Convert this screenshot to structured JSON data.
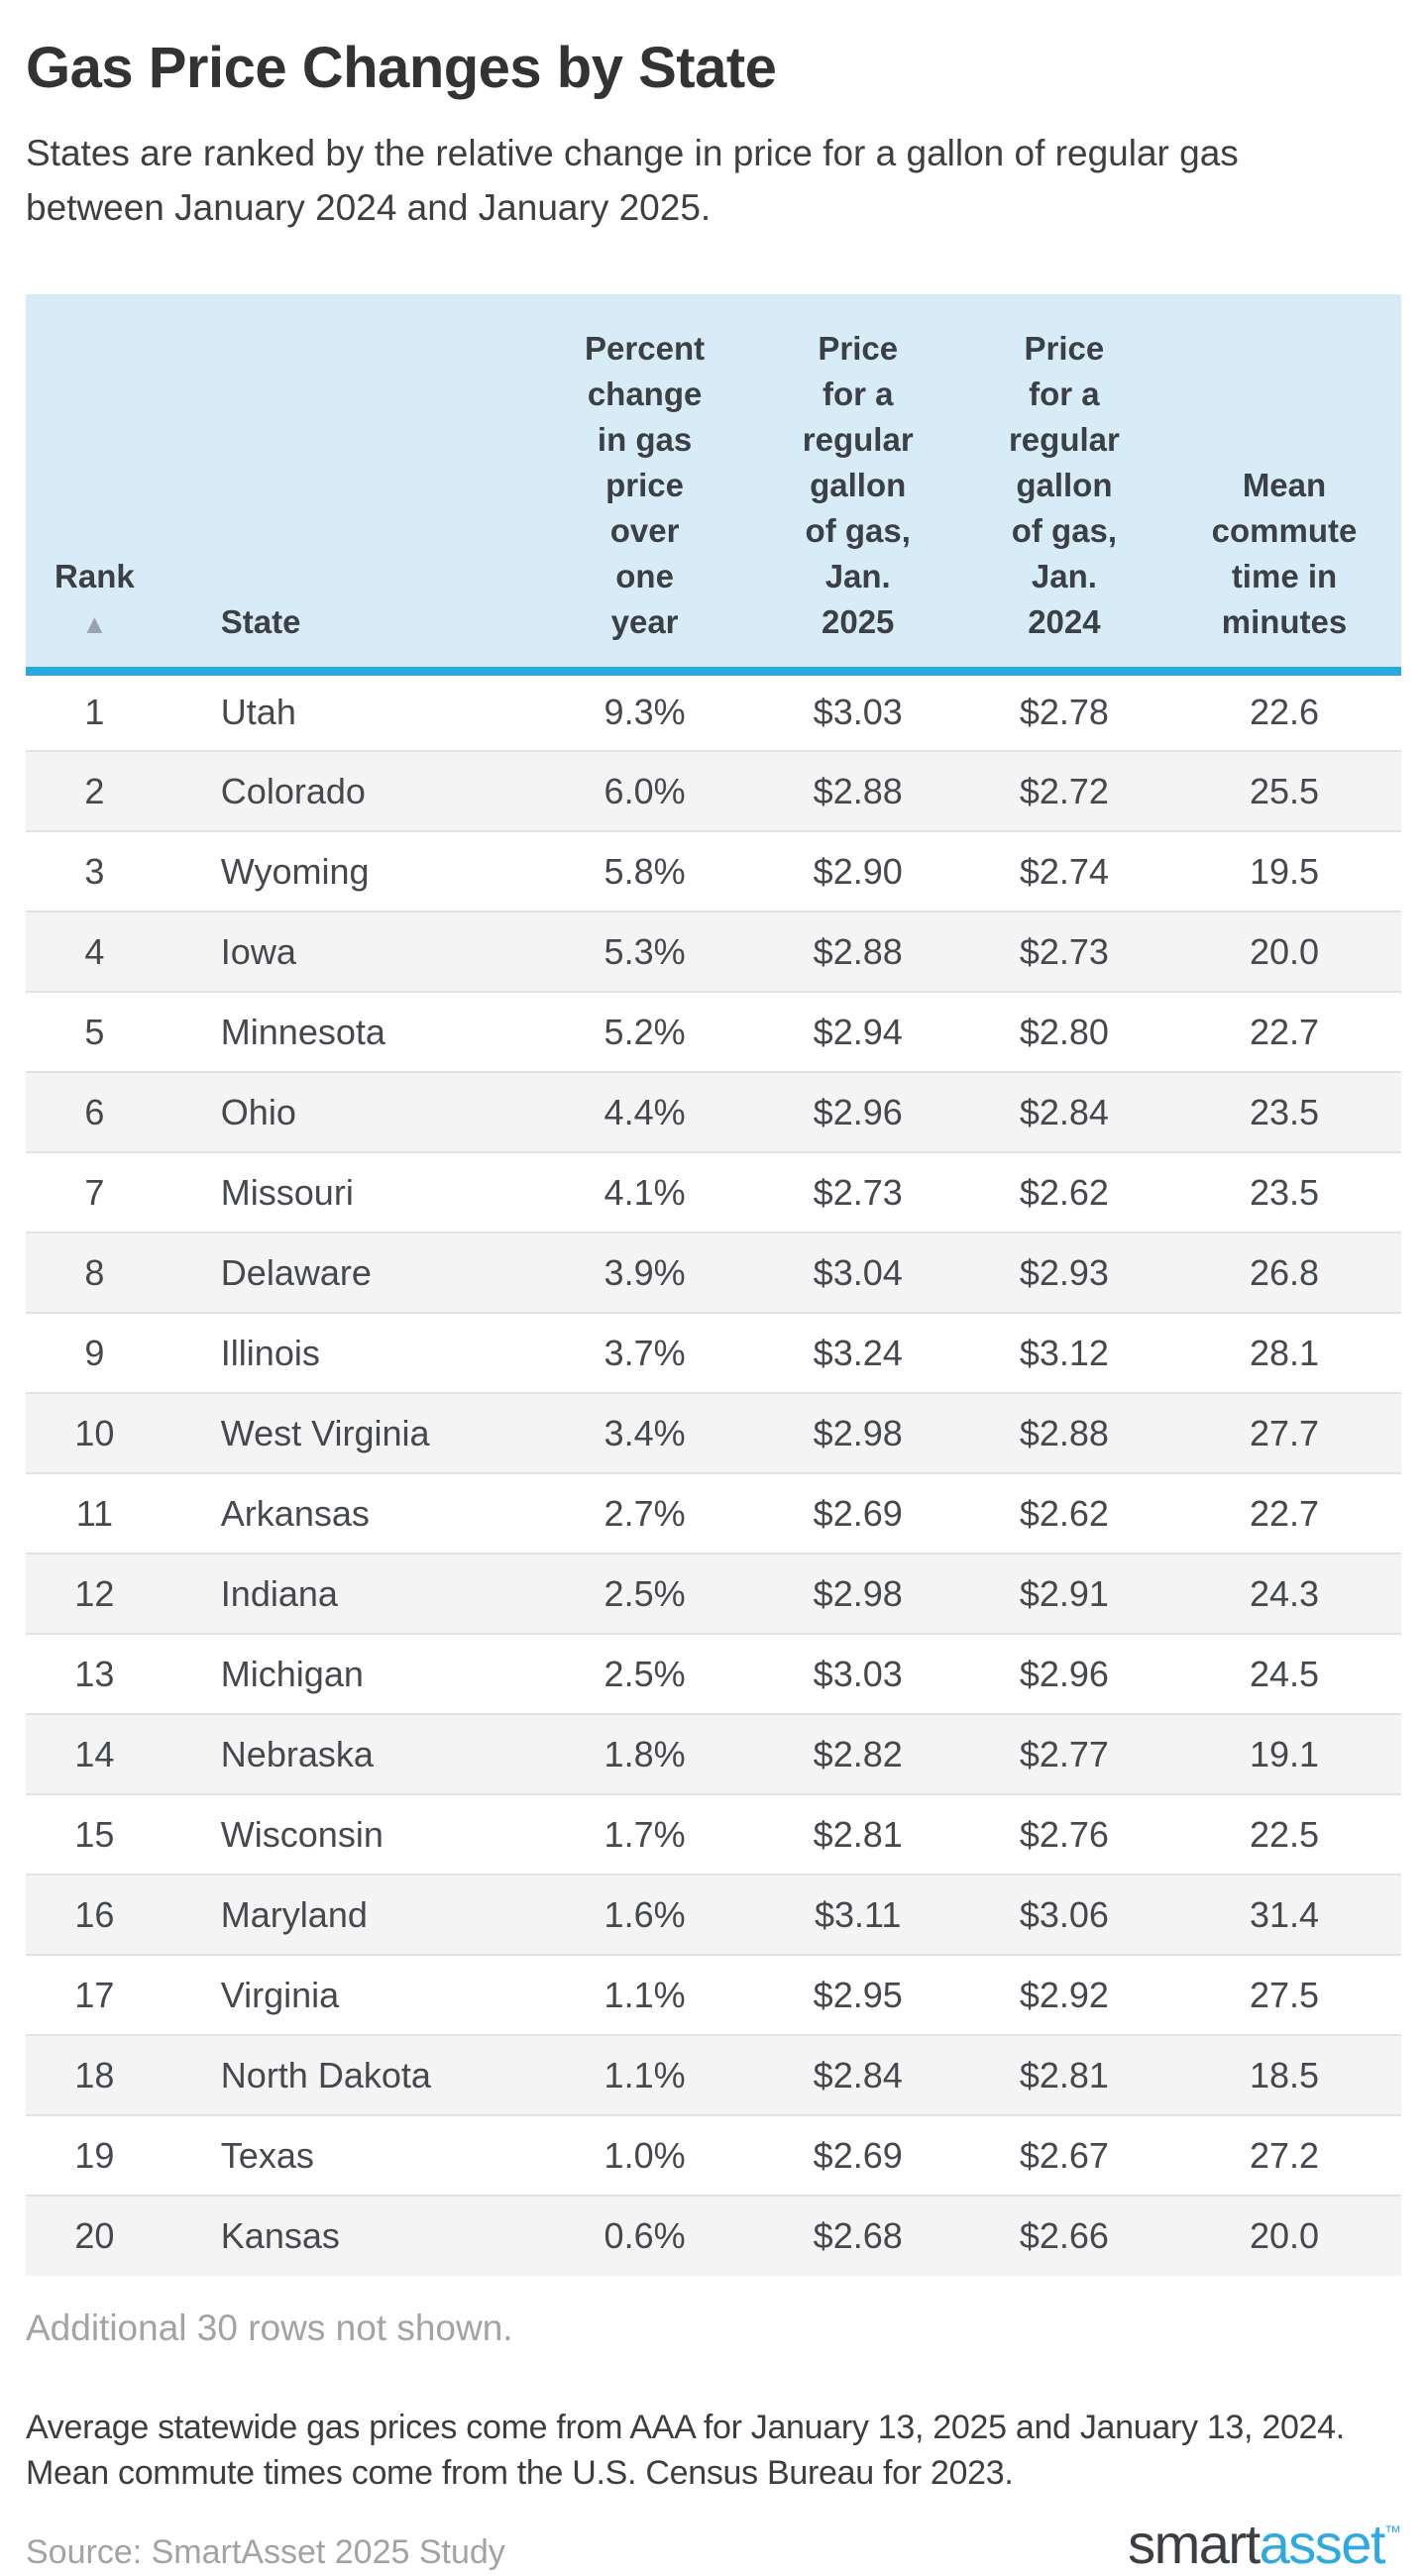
{
  "page": {
    "title": "Gas Price Changes by State",
    "subtitle_line1": "States are ranked by the relative change in price for a gallon of regular gas",
    "subtitle_line2": "between January 2024 and January 2025."
  },
  "table": {
    "header": {
      "rank": "Rank",
      "sort_indicator": "▲",
      "state": "State",
      "percent_change": "Percent\nchange\nin gas\nprice\nover\none\nyear",
      "price_2025": "Price\nfor a\nregular\ngallon\nof gas,\nJan.\n2025",
      "price_2024": "Price\nfor a\nregular\ngallon\nof gas,\nJan.\n2024",
      "commute": "Mean\ncommute\ntime in\nminutes"
    },
    "sorted_column": "Rank",
    "sort_direction": "ascending"
  },
  "notes": {
    "additional_rows": "Additional 30 rows not shown.",
    "methodology_line1": "Average statewide gas prices come from AAA for January 13, 2025 and January 13, 2024.",
    "methodology_line2": "Mean commute times come from the U.S. Census Bureau for 2023.",
    "source": "Source: SmartAsset 2025 Study"
  },
  "logo": {
    "part1": "smart",
    "part2": "asset",
    "trademark": "™"
  },
  "colors": {
    "header_background": "#d8ecf8",
    "accent_rule": "#29a9e0",
    "alt_row": "#f4f4f4",
    "row_divider": "#e2e2e2",
    "muted_text": "#a3a3a3",
    "body_text": "#45484d",
    "logo_blue": "#2fa9e1",
    "logo_dark": "#3b3e42"
  },
  "chart_data": {
    "type": "table",
    "title": "Gas Price Changes by State",
    "columns": [
      "Rank",
      "State",
      "Percent change in gas price over one year",
      "Price for a regular gallon of gas, Jan. 2025",
      "Price for a regular gallon of gas, Jan. 2024",
      "Mean commute time in minutes"
    ],
    "rows": [
      [
        1,
        "Utah",
        "9.3%",
        "$3.03",
        "$2.78",
        "22.6"
      ],
      [
        2,
        "Colorado",
        "6.0%",
        "$2.88",
        "$2.72",
        "25.5"
      ],
      [
        3,
        "Wyoming",
        "5.8%",
        "$2.90",
        "$2.74",
        "19.5"
      ],
      [
        4,
        "Iowa",
        "5.3%",
        "$2.88",
        "$2.73",
        "20.0"
      ],
      [
        5,
        "Minnesota",
        "5.2%",
        "$2.94",
        "$2.80",
        "22.7"
      ],
      [
        6,
        "Ohio",
        "4.4%",
        "$2.96",
        "$2.84",
        "23.5"
      ],
      [
        7,
        "Missouri",
        "4.1%",
        "$2.73",
        "$2.62",
        "23.5"
      ],
      [
        8,
        "Delaware",
        "3.9%",
        "$3.04",
        "$2.93",
        "26.8"
      ],
      [
        9,
        "Illinois",
        "3.7%",
        "$3.24",
        "$3.12",
        "28.1"
      ],
      [
        10,
        "West Virginia",
        "3.4%",
        "$2.98",
        "$2.88",
        "27.7"
      ],
      [
        11,
        "Arkansas",
        "2.7%",
        "$2.69",
        "$2.62",
        "22.7"
      ],
      [
        12,
        "Indiana",
        "2.5%",
        "$2.98",
        "$2.91",
        "24.3"
      ],
      [
        13,
        "Michigan",
        "2.5%",
        "$3.03",
        "$2.96",
        "24.5"
      ],
      [
        14,
        "Nebraska",
        "1.8%",
        "$2.82",
        "$2.77",
        "19.1"
      ],
      [
        15,
        "Wisconsin",
        "1.7%",
        "$2.81",
        "$2.76",
        "22.5"
      ],
      [
        16,
        "Maryland",
        "1.6%",
        "$3.11",
        "$3.06",
        "31.4"
      ],
      [
        17,
        "Virginia",
        "1.1%",
        "$2.95",
        "$2.92",
        "27.5"
      ],
      [
        18,
        "North Dakota",
        "1.1%",
        "$2.84",
        "$2.81",
        "18.5"
      ],
      [
        19,
        "Texas",
        "1.0%",
        "$2.69",
        "$2.67",
        "27.2"
      ],
      [
        20,
        "Kansas",
        "0.6%",
        "$2.68",
        "$2.66",
        "20.0"
      ]
    ]
  }
}
